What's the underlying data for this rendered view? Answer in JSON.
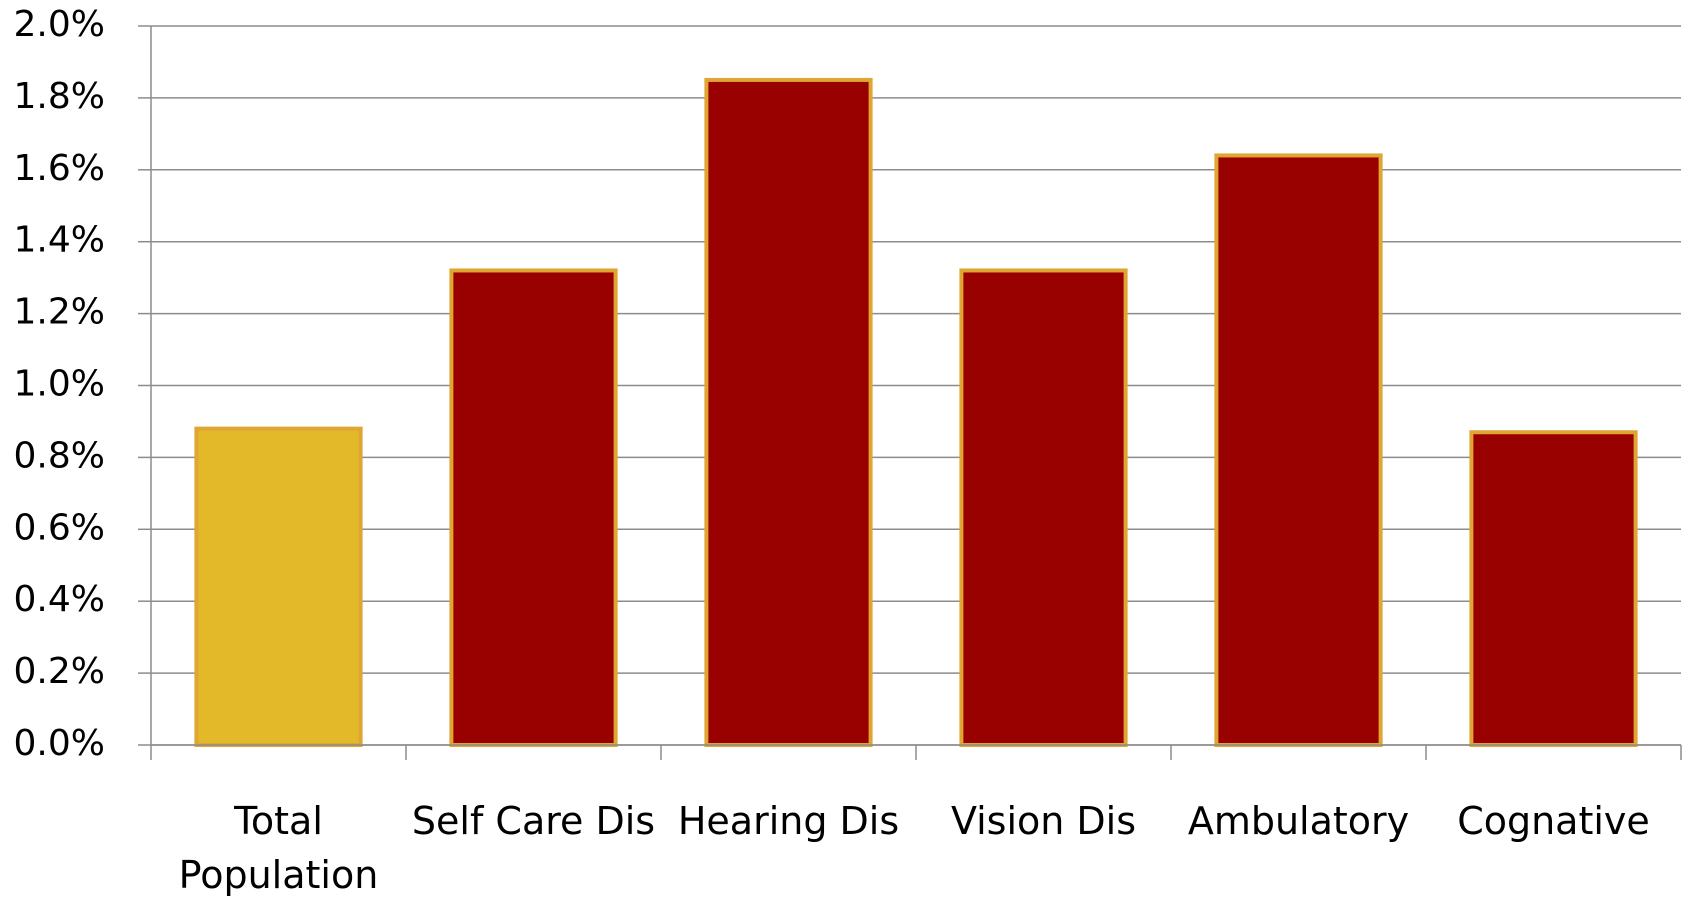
{
  "chart_data": {
    "type": "bar",
    "categories": [
      "Total Population",
      "Self Care Dis",
      "Hearing Dis",
      "Vision Dis",
      "Ambulatory",
      "Cognative"
    ],
    "values": [
      0.88,
      1.32,
      1.85,
      1.32,
      1.64,
      0.87
    ],
    "colors": [
      "#e3b92a",
      "#990000",
      "#990000",
      "#990000",
      "#990000",
      "#990000"
    ],
    "edge_color": "#e0a634",
    "ylim": [
      0,
      2.0
    ],
    "yticks": [
      {
        "value": 0,
        "label": "0.0%"
      },
      {
        "value": 0.2,
        "label": "0.2%"
      },
      {
        "value": 0.4,
        "label": "0.4%"
      },
      {
        "value": 0.6,
        "label": "0.6%"
      },
      {
        "value": 0.8,
        "label": "0.8%"
      },
      {
        "value": 1.0,
        "label": "1.0%"
      },
      {
        "value": 1.2,
        "label": "1.2%"
      },
      {
        "value": 1.4,
        "label": "1.4%"
      },
      {
        "value": 1.6,
        "label": "1.6%"
      },
      {
        "value": 1.8,
        "label": "1.8%"
      },
      {
        "value": 2.0,
        "label": "2.0%"
      }
    ],
    "grid": true
  }
}
